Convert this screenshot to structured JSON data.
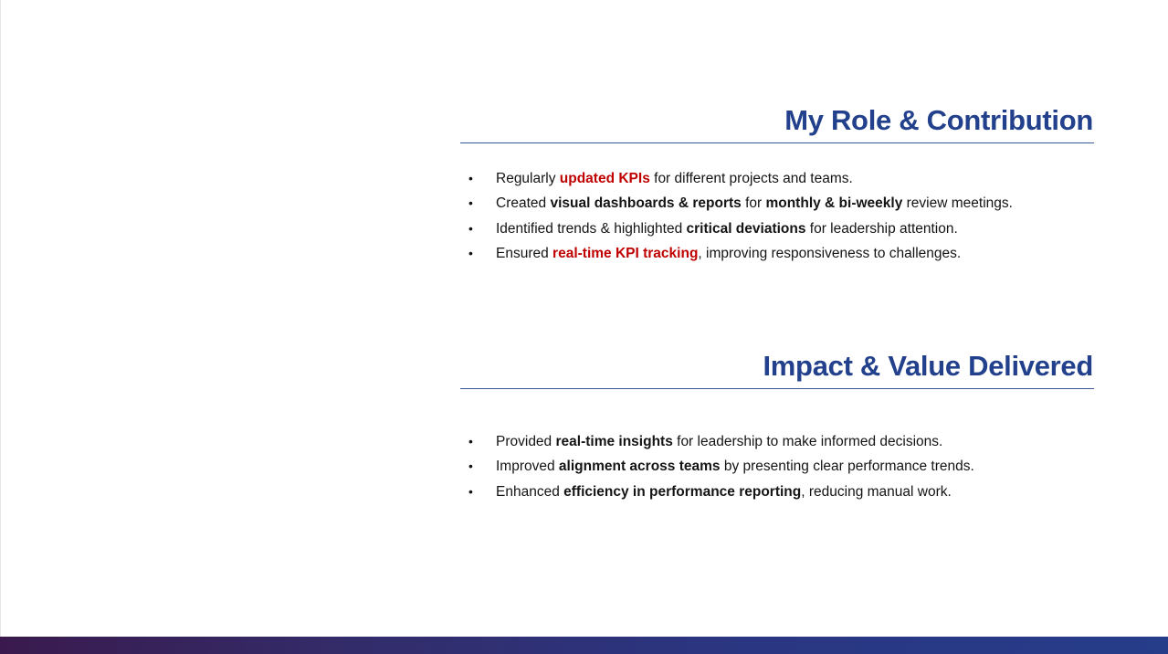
{
  "sections": [
    {
      "title": "My Role & Contribution",
      "items": [
        [
          {
            "text": "Regularly ",
            "style": "normal"
          },
          {
            "text": "updated KPIs",
            "style": "highlight"
          },
          {
            "text": " for different projects and teams.",
            "style": "normal"
          }
        ],
        [
          {
            "text": "Created ",
            "style": "normal"
          },
          {
            "text": "visual dashboards & reports",
            "style": "bold"
          },
          {
            "text": " for ",
            "style": "normal"
          },
          {
            "text": "monthly & bi-weekly",
            "style": "bold"
          },
          {
            "text": " review meetings.",
            "style": "normal"
          }
        ],
        [
          {
            "text": "Identified trends & highlighted ",
            "style": "normal"
          },
          {
            "text": "critical deviations",
            "style": "bold"
          },
          {
            "text": " for leadership attention.",
            "style": "normal"
          }
        ],
        [
          {
            "text": "Ensured ",
            "style": "normal"
          },
          {
            "text": "real-time KPI tracking",
            "style": "highlight"
          },
          {
            "text": ", improving responsiveness to challenges.",
            "style": "normal"
          }
        ]
      ]
    },
    {
      "title": "Impact & Value Delivered",
      "items": [
        [
          {
            "text": "Provided ",
            "style": "normal"
          },
          {
            "text": "real-time insights",
            "style": "bold"
          },
          {
            "text": " for leadership to make informed decisions.",
            "style": "normal"
          }
        ],
        [
          {
            "text": "Improved ",
            "style": "normal"
          },
          {
            "text": "alignment across teams",
            "style": "bold"
          },
          {
            "text": " by presenting clear performance trends.",
            "style": "normal"
          }
        ],
        [
          {
            "text": "Enhanced ",
            "style": "normal"
          },
          {
            "text": "efficiency in performance reporting",
            "style": "bold"
          },
          {
            "text": ", reducing manual work.",
            "style": "normal"
          }
        ]
      ]
    }
  ],
  "bullet_symbol": "•",
  "colors": {
    "title": "#22408c",
    "highlight": "#c00000",
    "rule": "#3b5998",
    "footer_gradient": [
      "#3a1a4e",
      "#263d8a"
    ]
  }
}
